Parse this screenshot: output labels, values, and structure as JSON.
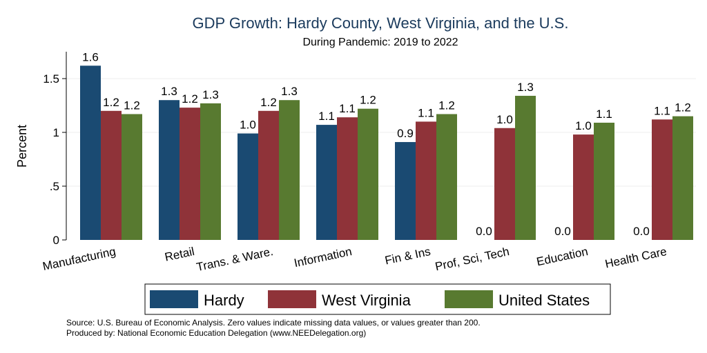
{
  "chart_data": {
    "type": "bar",
    "title": "GDP Growth: Hardy County, West Virginia, and the U.S.",
    "subtitle": "During Pandemic: 2019 to 2022",
    "ylabel": "Percent",
    "xlabel": "",
    "ylim": [
      0,
      1.75
    ],
    "yticks": [
      {
        "value": 0,
        "label": "0"
      },
      {
        "value": 0.5,
        "label": ".5"
      },
      {
        "value": 1,
        "label": "1"
      },
      {
        "value": 1.5,
        "label": "1.5"
      }
    ],
    "grid": true,
    "legend_position": "bottom",
    "categories": [
      "Manufacturing",
      "Retail",
      "Trans. & Ware.",
      "Information",
      "Fin & Ins",
      "Prof, Sci, Tech",
      "Education",
      "Health Care"
    ],
    "series": [
      {
        "name": "Hardy",
        "color": "#1a4a72",
        "values": [
          1.62,
          1.3,
          0.99,
          1.07,
          0.91,
          0.0,
          0.0,
          0.0
        ],
        "labels": [
          "1.6",
          "1.3",
          "1.0",
          "1.1",
          "0.9",
          "0.0",
          "0.0",
          "0.0"
        ]
      },
      {
        "name": "West Virginia",
        "color": "#8f3339",
        "values": [
          1.2,
          1.23,
          1.2,
          1.14,
          1.1,
          1.04,
          0.98,
          1.12
        ],
        "labels": [
          "1.2",
          "1.2",
          "1.2",
          "1.1",
          "1.1",
          "1.0",
          "1.0",
          "1.1"
        ]
      },
      {
        "name": "United States",
        "color": "#587a30",
        "values": [
          1.17,
          1.27,
          1.3,
          1.22,
          1.17,
          1.34,
          1.09,
          1.15
        ],
        "labels": [
          "1.2",
          "1.3",
          "1.3",
          "1.2",
          "1.2",
          "1.3",
          "1.1",
          "1.2"
        ]
      }
    ]
  },
  "footer": {
    "source": "Source: U.S. Bureau of Economic Analysis. Zero values indicate missing data values, or values greater than 200.",
    "produced_by": "Produced by: National Economic Education Delegation (www.NEEDelegation.org)"
  }
}
